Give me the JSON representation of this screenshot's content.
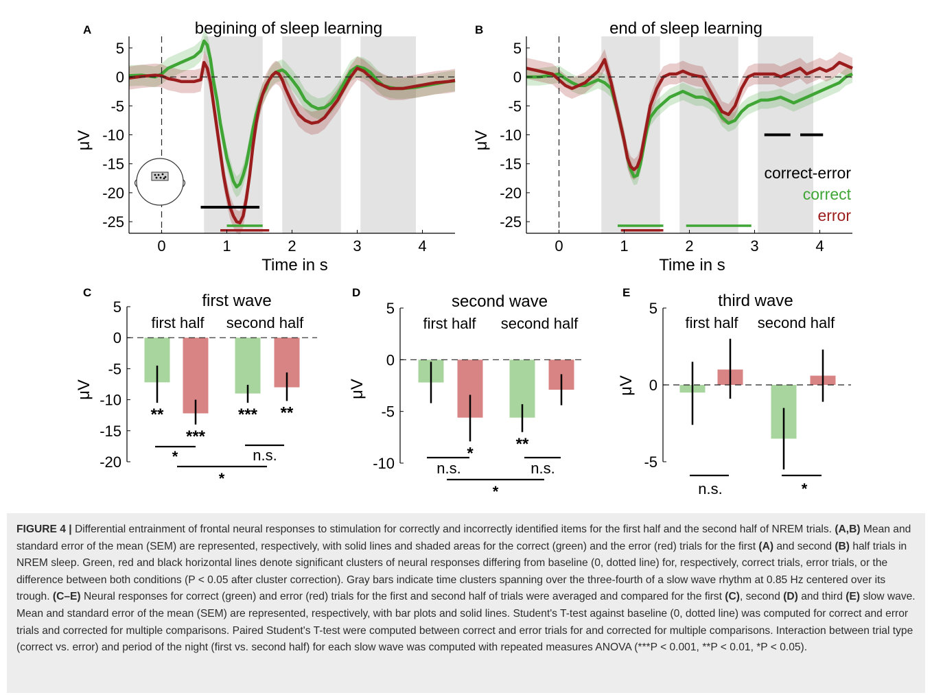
{
  "figure": {
    "panel_letters": {
      "A": "A",
      "B": "B",
      "C": "C",
      "D": "D",
      "E": "E"
    }
  },
  "chart_data": [
    {
      "panel": "A",
      "type": "line",
      "title": "begining of sleep learning",
      "xlabel": "Time in s",
      "ylabel": "μV",
      "xlim": [
        -0.5,
        4.5
      ],
      "ylim": [
        -27,
        7
      ],
      "xticks": [
        0,
        1,
        2,
        3,
        4
      ],
      "yticks": [
        5,
        0,
        -5,
        -10,
        -15,
        -20,
        -25
      ],
      "baseline": 0,
      "stim_onset": 0,
      "gray_bars": [
        [
          0.65,
          1.55
        ],
        [
          1.85,
          2.75
        ],
        [
          3.05,
          3.9
        ]
      ],
      "inset": "head-electrode-icon",
      "series": [
        {
          "name": "correct",
          "color": "#3fa535",
          "x": [
            -0.5,
            -0.3,
            -0.1,
            0,
            0.1,
            0.2,
            0.3,
            0.4,
            0.5,
            0.6,
            0.65,
            0.7,
            0.75,
            0.8,
            0.85,
            0.9,
            0.95,
            1.0,
            1.05,
            1.1,
            1.15,
            1.2,
            1.25,
            1.3,
            1.35,
            1.4,
            1.45,
            1.5,
            1.55,
            1.6,
            1.65,
            1.7,
            1.75,
            1.8,
            1.85,
            1.9,
            2.0,
            2.1,
            2.2,
            2.3,
            2.4,
            2.5,
            2.6,
            2.7,
            2.8,
            2.9,
            3.0,
            3.1,
            3.2,
            3.3,
            3.4,
            3.5,
            3.6,
            3.7,
            3.8,
            3.9,
            4.0,
            4.1,
            4.2,
            4.3,
            4.4,
            4.5
          ],
          "y": [
            0.2,
            0.3,
            0,
            0.5,
            1.5,
            2,
            2.5,
            3,
            3.5,
            4.5,
            6.2,
            5.5,
            3,
            -1,
            -4,
            -8,
            -11,
            -14,
            -16,
            -18,
            -19,
            -18.5,
            -17,
            -15,
            -12,
            -9,
            -6.5,
            -4.5,
            -3,
            -2,
            -0.5,
            0.3,
            0.8,
            1,
            1.2,
            0.8,
            -0.5,
            -2,
            -4,
            -5,
            -5.5,
            -5.3,
            -4.5,
            -3,
            -1,
            1,
            1.8,
            1.5,
            0.8,
            -0.5,
            -1.5,
            -1.8,
            -2,
            -2,
            -1.9,
            -1.8,
            -1.6,
            -1.4,
            -1.2,
            -1,
            -0.8,
            -0.7
          ],
          "sem": 1.8
        },
        {
          "name": "error",
          "color": "#9b1c1c",
          "x": [
            -0.5,
            -0.3,
            -0.1,
            0,
            0.1,
            0.2,
            0.3,
            0.4,
            0.5,
            0.6,
            0.65,
            0.7,
            0.75,
            0.8,
            0.85,
            0.9,
            0.95,
            1.0,
            1.05,
            1.1,
            1.15,
            1.2,
            1.25,
            1.3,
            1.35,
            1.4,
            1.45,
            1.5,
            1.55,
            1.6,
            1.65,
            1.7,
            1.75,
            1.8,
            1.85,
            1.9,
            2.0,
            2.1,
            2.2,
            2.3,
            2.4,
            2.5,
            2.6,
            2.7,
            2.8,
            2.9,
            3.0,
            3.1,
            3.2,
            3.3,
            3.4,
            3.5,
            3.6,
            3.7,
            3.8,
            3.9,
            4.0,
            4.1,
            4.2,
            4.3,
            4.4,
            4.5
          ],
          "y": [
            -0.2,
            0.1,
            0.3,
            0.2,
            -0.3,
            -0.5,
            -0.8,
            -0.8,
            -0.8,
            -0.5,
            2.5,
            1.5,
            -1,
            -5,
            -9,
            -13,
            -17,
            -20,
            -22.5,
            -24,
            -25,
            -25.2,
            -24,
            -21,
            -17,
            -12,
            -8,
            -5,
            -3,
            -1.5,
            -0.5,
            0.3,
            0.8,
            0.5,
            -0.5,
            -2,
            -4.5,
            -6.5,
            -7.5,
            -8,
            -7.8,
            -7,
            -5.5,
            -4,
            -2,
            0,
            1.5,
            1,
            0,
            -1,
            -1.5,
            -2,
            -2,
            -2,
            -1.8,
            -1.6,
            -1.4,
            -1.2,
            -1,
            -0.9,
            -0.8,
            -0.6
          ],
          "sem": 2.0
        }
      ],
      "cluster_lines": [
        {
          "kind": "correct-error",
          "color": "#000000",
          "x": [
            0.6,
            1.5
          ]
        },
        {
          "kind": "correct",
          "color": "#3fa535",
          "x": [
            1.0,
            1.55
          ]
        },
        {
          "kind": "error",
          "color": "#9b1c1c",
          "x": [
            0.9,
            1.65
          ]
        }
      ]
    },
    {
      "panel": "B",
      "type": "line",
      "title": "end of sleep learning",
      "xlabel": "Time in s",
      "ylabel": "μV",
      "xlim": [
        -0.5,
        4.5
      ],
      "ylim": [
        -27,
        7
      ],
      "xticks": [
        0,
        1,
        2,
        3,
        4
      ],
      "yticks": [
        5,
        0,
        -5,
        -10,
        -15,
        -20,
        -25
      ],
      "baseline": 0,
      "stim_onset": 0,
      "gray_bars": [
        [
          0.65,
          1.55
        ],
        [
          1.85,
          2.75
        ],
        [
          3.05,
          3.9
        ]
      ],
      "legend": [
        "correct-error",
        "correct",
        "error"
      ],
      "legend_colors": [
        "#000000",
        "#3fa535",
        "#9b1c1c"
      ],
      "legend_position": "bottom-right",
      "series": [
        {
          "name": "correct",
          "color": "#3fa535",
          "x": [
            -0.5,
            -0.3,
            -0.1,
            0,
            0.1,
            0.2,
            0.3,
            0.4,
            0.5,
            0.6,
            0.7,
            0.8,
            0.9,
            1.0,
            1.05,
            1.1,
            1.15,
            1.2,
            1.25,
            1.3,
            1.35,
            1.4,
            1.5,
            1.6,
            1.7,
            1.8,
            1.9,
            2.0,
            2.1,
            2.2,
            2.3,
            2.4,
            2.5,
            2.6,
            2.7,
            2.8,
            2.9,
            3.0,
            3.1,
            3.2,
            3.3,
            3.4,
            3.5,
            3.6,
            3.7,
            3.8,
            3.9,
            4.0,
            4.1,
            4.2,
            4.3,
            4.4,
            4.5
          ],
          "y": [
            0,
            0,
            0.3,
            0.5,
            -0.3,
            -1,
            -1.5,
            -1.5,
            -1,
            -0.5,
            -1,
            -2,
            -6,
            -11,
            -14,
            -16,
            -17.2,
            -17,
            -15,
            -12,
            -9,
            -7,
            -5.5,
            -4.5,
            -3.5,
            -3,
            -2.5,
            -3,
            -3.5,
            -3.5,
            -4,
            -5,
            -7,
            -8,
            -7.5,
            -6,
            -5,
            -4.5,
            -4,
            -4,
            -3.8,
            -3.5,
            -4,
            -4.5,
            -4,
            -3.5,
            -3,
            -2.5,
            -2,
            -1.5,
            -1,
            0,
            0.5
          ],
          "sem": 1.5
        },
        {
          "name": "error",
          "color": "#9b1c1c",
          "x": [
            -0.5,
            -0.3,
            -0.1,
            0,
            0.1,
            0.2,
            0.3,
            0.4,
            0.5,
            0.6,
            0.7,
            0.8,
            0.9,
            1.0,
            1.05,
            1.1,
            1.15,
            1.2,
            1.25,
            1.3,
            1.35,
            1.4,
            1.5,
            1.6,
            1.7,
            1.8,
            1.9,
            2.0,
            2.1,
            2.2,
            2.3,
            2.4,
            2.5,
            2.6,
            2.7,
            2.8,
            2.9,
            3.0,
            3.1,
            3.2,
            3.3,
            3.4,
            3.5,
            3.6,
            3.7,
            3.8,
            3.9,
            4.0,
            4.1,
            4.2,
            4.3,
            4.4,
            4.5
          ],
          "y": [
            1.5,
            1,
            0.5,
            -0.5,
            -1.5,
            -2,
            -1.5,
            -1,
            0,
            1,
            3,
            -1,
            -6,
            -11,
            -14,
            -15.5,
            -16,
            -15.5,
            -14,
            -11,
            -8,
            -5,
            -2,
            0,
            0.5,
            0.5,
            1,
            0.5,
            0.2,
            0,
            -2,
            -4,
            -6,
            -6.5,
            -5,
            -2,
            0,
            0.5,
            0.5,
            0.5,
            0.5,
            0,
            0.5,
            1,
            1.5,
            0.5,
            1,
            1.5,
            1,
            1.5,
            2.5,
            2,
            1.5
          ],
          "sem": 1.8
        }
      ],
      "cluster_lines": [
        {
          "kind": "correct-error",
          "color": "#000000",
          "x": [
            3.15,
            3.55
          ]
        },
        {
          "kind": "correct-error",
          "color": "#000000",
          "x": [
            3.7,
            4.05
          ]
        },
        {
          "kind": "correct",
          "color": "#3fa535",
          "x": [
            0.9,
            1.6
          ]
        },
        {
          "kind": "error",
          "color": "#9b1c1c",
          "x": [
            0.95,
            1.6
          ]
        },
        {
          "kind": "correct",
          "color": "#3fa535",
          "x": [
            1.95,
            2.95
          ]
        }
      ]
    },
    {
      "panel": "C",
      "type": "bar",
      "title": "first wave",
      "ylabel": "μV",
      "ylim": [
        -20,
        5
      ],
      "yticks": [
        5,
        0,
        -5,
        -10,
        -15,
        -20
      ],
      "group_labels": [
        "first half",
        "second half"
      ],
      "bars": [
        {
          "condition": "correct",
          "half": "first half",
          "value": -7.2,
          "err_low": -10.5,
          "err_high": -4.5,
          "stars": "**"
        },
        {
          "condition": "error",
          "half": "first half",
          "value": -12.2,
          "err_low": -14.0,
          "err_high": -10.0,
          "stars": "***"
        },
        {
          "condition": "correct",
          "half": "second half",
          "value": -9.0,
          "err_low": -10.5,
          "err_high": -7.6,
          "stars": "***"
        },
        {
          "condition": "error",
          "half": "second half",
          "value": -8.0,
          "err_low": -10.2,
          "err_high": -5.6,
          "stars": "**"
        }
      ],
      "comparisons": [
        {
          "between": "first half",
          "label": "*"
        },
        {
          "between": "second half",
          "label": "n.s."
        },
        {
          "between": "interaction",
          "label": "*"
        }
      ]
    },
    {
      "panel": "D",
      "type": "bar",
      "title": "second wave",
      "ylabel": "μV",
      "ylim": [
        -10,
        5
      ],
      "yticks": [
        5,
        0,
        -5,
        -10
      ],
      "group_labels": [
        "first half",
        "second half"
      ],
      "bars": [
        {
          "condition": "correct",
          "half": "first half",
          "value": -2.2,
          "err_low": -4.2,
          "err_high": -0.2,
          "stars": ""
        },
        {
          "condition": "error",
          "half": "first half",
          "value": -5.6,
          "err_low": -7.9,
          "err_high": -3.4,
          "stars": "*"
        },
        {
          "condition": "correct",
          "half": "second half",
          "value": -5.6,
          "err_low": -7.0,
          "err_high": -4.3,
          "stars": "**"
        },
        {
          "condition": "error",
          "half": "second half",
          "value": -2.9,
          "err_low": -4.4,
          "err_high": -1.4,
          "stars": ""
        }
      ],
      "comparisons": [
        {
          "between": "first half",
          "label": "n.s."
        },
        {
          "between": "second half",
          "label": "n.s."
        },
        {
          "between": "interaction",
          "label": "*"
        }
      ]
    },
    {
      "panel": "E",
      "type": "bar",
      "title": "third wave",
      "ylabel": "μV",
      "ylim": [
        -5,
        5
      ],
      "yticks": [
        5,
        0,
        -5
      ],
      "group_labels": [
        "first half",
        "second half"
      ],
      "bars": [
        {
          "condition": "correct",
          "half": "first half",
          "value": -0.5,
          "err_low": -2.6,
          "err_high": 1.5,
          "stars": ""
        },
        {
          "condition": "error",
          "half": "first half",
          "value": 1.0,
          "err_low": -0.9,
          "err_high": 3.0,
          "stars": ""
        },
        {
          "condition": "correct",
          "half": "second half",
          "value": -3.5,
          "err_low": -5.5,
          "err_high": -1.5,
          "stars": ""
        },
        {
          "condition": "error",
          "half": "second half",
          "value": 0.6,
          "err_low": -1.1,
          "err_high": 2.3,
          "stars": ""
        }
      ],
      "comparisons": [
        {
          "between": "first half",
          "label": "n.s."
        },
        {
          "between": "second half",
          "label": "*"
        }
      ]
    }
  ],
  "caption": {
    "label": "FIGURE 4 |",
    "segments": [
      {
        "t": " Differential entrainment of frontal neural responses to stimulation for correctly and incorrectly identified items for the first half and the second half of NREM trials. ",
        "b": false
      },
      {
        "t": "(A,B)",
        "b": true
      },
      {
        "t": " Mean and standard error of the mean (SEM) are represented, respectively, with solid lines and shaded areas for the correct (green) and the error (red) trials for the first ",
        "b": false
      },
      {
        "t": "(A)",
        "b": true
      },
      {
        "t": " and second ",
        "b": false
      },
      {
        "t": "(B)",
        "b": true
      },
      {
        "t": " half trials in NREM sleep. Green, red and black horizontal lines denote significant clusters of neural responses differing from baseline (0, dotted line) for, respectively, correct trials, error trials, or the difference between both conditions (P < 0.05 after cluster correction). Gray bars indicate time clusters spanning over the three-fourth of a slow wave rhythm at 0.85 Hz centered over its trough. ",
        "b": false
      },
      {
        "t": "(C–E)",
        "b": true
      },
      {
        "t": " Neural responses for correct (green) and error (red) trials for the first and second half of trials were averaged and compared for the first ",
        "b": false
      },
      {
        "t": "(C)",
        "b": true
      },
      {
        "t": ", second ",
        "b": false
      },
      {
        "t": "(D)",
        "b": true
      },
      {
        "t": " and third ",
        "b": false
      },
      {
        "t": "(E)",
        "b": true
      },
      {
        "t": " slow wave. Mean and standard error of the mean (SEM) are represented, respectively, with bar plots and solid lines. Student's T-test against baseline (0, dotted line) was computed for correct and error trials and corrected for multiple comparisons. Paired Student's T-test were computed between correct and error trials for and corrected for multiple comparisons. Interaction between trial type (correct vs. error) and period of the night (first vs. second half) for each slow wave was computed with repeated measures ANOVA (***P < 0.001, **P < 0.01, *P < 0.05).",
        "b": false
      }
    ]
  }
}
